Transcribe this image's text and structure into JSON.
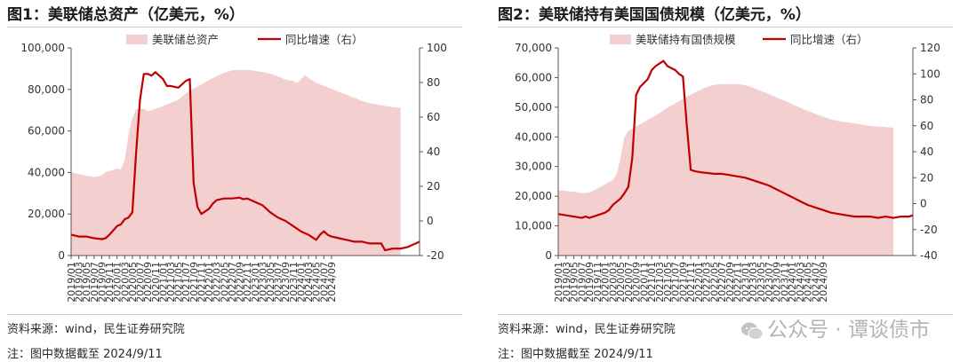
{
  "watermark": "公众号 · 谭谈债市",
  "chart_data": [
    {
      "type": "area",
      "title": "图1：美联储总资产（亿美元，%）",
      "source": "资料来源：wind，民生证券研究院",
      "note": "注：图中数据截至 2024/9/11",
      "area_color": "#f3cfcf",
      "line_color": "#c00000",
      "series": [
        {
          "name": "美联储总资产",
          "axis": "left",
          "kind": "area"
        },
        {
          "name": "同比增速（右）",
          "axis": "right",
          "kind": "line"
        }
      ],
      "y_left": {
        "min": 0,
        "max": 100000,
        "ticks": [
          "0",
          "20,000",
          "40,000",
          "60,000",
          "80,000",
          "100,000"
        ]
      },
      "y_right": {
        "min": -20,
        "max": 100,
        "ticks": [
          "-20",
          "0",
          "20",
          "40",
          "60",
          "80",
          "100"
        ]
      },
      "x_ticks": [
        "2019/01",
        "2019/03",
        "2019/05",
        "2019/07",
        "2019/09",
        "2019/11",
        "2020/01",
        "2020/03",
        "2020/05",
        "2020/07",
        "2020/09",
        "2020/11",
        "2021/01",
        "2021/03",
        "2021/05",
        "2021/07",
        "2021/09",
        "2021/11",
        "2022/01",
        "2022/03",
        "2022/05",
        "2022/07",
        "2022/09",
        "2022/11",
        "2023/01",
        "2023/03",
        "2023/05",
        "2023/07",
        "2023/09",
        "2023/11",
        "2024/01",
        "2024/03",
        "2024/05",
        "2024/07",
        "2024/09"
      ],
      "area_points": [
        [
          0,
          40000
        ],
        [
          3,
          38800
        ],
        [
          6,
          37800
        ],
        [
          8,
          38600
        ],
        [
          9,
          40200
        ],
        [
          12,
          41800
        ],
        [
          13,
          41600
        ],
        [
          14,
          46000
        ],
        [
          15,
          58000
        ],
        [
          16,
          66000
        ],
        [
          17,
          70500
        ],
        [
          18,
          70800
        ],
        [
          19,
          70600
        ],
        [
          20,
          69500
        ],
        [
          22,
          70600
        ],
        [
          24,
          72000
        ],
        [
          26,
          73500
        ],
        [
          28,
          75000
        ],
        [
          30,
          78200
        ],
        [
          32,
          80500
        ],
        [
          34,
          82300
        ],
        [
          36,
          84500
        ],
        [
          38,
          86400
        ],
        [
          40,
          88000
        ],
        [
          42,
          89200
        ],
        [
          44,
          89500
        ],
        [
          46,
          89400
        ],
        [
          48,
          89000
        ],
        [
          50,
          88300
        ],
        [
          52,
          87600
        ],
        [
          54,
          86300
        ],
        [
          56,
          84800
        ],
        [
          58,
          84000
        ],
        [
          59,
          83100
        ],
        [
          60,
          85000
        ],
        [
          61,
          87000
        ],
        [
          62,
          85500
        ],
        [
          64,
          83200
        ],
        [
          66,
          81800
        ],
        [
          68,
          80300
        ],
        [
          70,
          78800
        ],
        [
          72,
          77300
        ],
        [
          74,
          75900
        ],
        [
          76,
          74400
        ],
        [
          78,
          73300
        ],
        [
          80,
          72800
        ],
        [
          82,
          72000
        ],
        [
          84,
          71500
        ],
        [
          86,
          71200
        ]
      ],
      "line_points": [
        [
          0,
          -8
        ],
        [
          2,
          -9
        ],
        [
          4,
          -9
        ],
        [
          6,
          -10
        ],
        [
          8,
          -10.5
        ],
        [
          9,
          -10
        ],
        [
          10,
          -8
        ],
        [
          12,
          -3
        ],
        [
          13,
          -2
        ],
        [
          14,
          1
        ],
        [
          15,
          2
        ],
        [
          16,
          5
        ],
        [
          17,
          40
        ],
        [
          18,
          70
        ],
        [
          19,
          85
        ],
        [
          20,
          85
        ],
        [
          21,
          84
        ],
        [
          22,
          86
        ],
        [
          24,
          82
        ],
        [
          25,
          78
        ],
        [
          26,
          78
        ],
        [
          28,
          77
        ],
        [
          29,
          79
        ],
        [
          30,
          81
        ],
        [
          31,
          82
        ],
        [
          32,
          22
        ],
        [
          33,
          8
        ],
        [
          34,
          4
        ],
        [
          36,
          7
        ],
        [
          37,
          10
        ],
        [
          38,
          12
        ],
        [
          40,
          13
        ],
        [
          42,
          13
        ],
        [
          44,
          13.5
        ],
        [
          45,
          12.5
        ],
        [
          46,
          13
        ],
        [
          47,
          12
        ],
        [
          48,
          11
        ],
        [
          50,
          9
        ],
        [
          52,
          5
        ],
        [
          54,
          2
        ],
        [
          56,
          0
        ],
        [
          58,
          -3
        ],
        [
          60,
          -6
        ],
        [
          62,
          -8
        ],
        [
          64,
          -11
        ],
        [
          65,
          -8
        ],
        [
          66,
          -6
        ],
        [
          67,
          -8
        ],
        [
          68,
          -9
        ],
        [
          70,
          -10
        ],
        [
          72,
          -11
        ],
        [
          74,
          -12
        ],
        [
          76,
          -12
        ],
        [
          78,
          -13
        ],
        [
          80,
          -13
        ],
        [
          81,
          -13
        ],
        [
          82,
          -17
        ],
        [
          84,
          -16
        ],
        [
          86,
          -16
        ],
        [
          88,
          -15
        ],
        [
          89,
          -14
        ],
        [
          90,
          -13
        ],
        [
          91,
          -12
        ]
      ],
      "x_count": 92
    },
    {
      "type": "area",
      "title": "图2：美联储持有美国国债规模（亿美元，%）",
      "source": "资料来源：wind，民生证券研究院",
      "note": "注：图中数据截至 2024/9/11",
      "area_color": "#f3cfcf",
      "line_color": "#c00000",
      "series": [
        {
          "name": "美联储持有国债规模",
          "axis": "left",
          "kind": "area"
        },
        {
          "name": "同比增速（右）",
          "axis": "right",
          "kind": "line"
        }
      ],
      "y_left": {
        "min": 0,
        "max": 70000,
        "ticks": [
          "0",
          "10,000",
          "20,000",
          "30,000",
          "40,000",
          "50,000",
          "60,000",
          "70,000"
        ]
      },
      "y_right": {
        "min": -40,
        "max": 120,
        "ticks": [
          "-40",
          "-20",
          "0",
          "20",
          "40",
          "60",
          "80",
          "100",
          "120"
        ]
      },
      "x_ticks": [
        "2019/01",
        "2019/03",
        "2019/05",
        "2019/07",
        "2019/09",
        "2019/11",
        "2020/01",
        "2020/03",
        "2020/05",
        "2020/07",
        "2020/09",
        "2020/11",
        "2021/01",
        "2021/03",
        "2021/05",
        "2021/07",
        "2021/09",
        "2021/11",
        "2022/01",
        "2022/03",
        "2022/05",
        "2022/07",
        "2022/09",
        "2022/11",
        "2023/01",
        "2023/03",
        "2023/05",
        "2023/07",
        "2023/09",
        "2023/11",
        "2024/01",
        "2024/03",
        "2024/05",
        "2024/07",
        "2024/09"
      ],
      "area_points": [
        [
          0,
          22000
        ],
        [
          4,
          21500
        ],
        [
          6,
          21000
        ],
        [
          8,
          21200
        ],
        [
          10,
          22500
        ],
        [
          12,
          24000
        ],
        [
          14,
          25500
        ],
        [
          15,
          27500
        ],
        [
          16,
          33000
        ],
        [
          17,
          40000
        ],
        [
          18,
          42000
        ],
        [
          20,
          43500
        ],
        [
          22,
          45000
        ],
        [
          24,
          46500
        ],
        [
          26,
          48000
        ],
        [
          28,
          49800
        ],
        [
          30,
          51300
        ],
        [
          32,
          52800
        ],
        [
          34,
          54300
        ],
        [
          36,
          55600
        ],
        [
          38,
          56800
        ],
        [
          40,
          57500
        ],
        [
          42,
          57800
        ],
        [
          46,
          57800
        ],
        [
          48,
          57400
        ],
        [
          50,
          56600
        ],
        [
          52,
          55500
        ],
        [
          54,
          54500
        ],
        [
          56,
          53300
        ],
        [
          58,
          52200
        ],
        [
          60,
          51100
        ],
        [
          62,
          49900
        ],
        [
          64,
          48800
        ],
        [
          66,
          47800
        ],
        [
          68,
          46800
        ],
        [
          70,
          45900
        ],
        [
          72,
          45300
        ],
        [
          74,
          44900
        ],
        [
          76,
          44600
        ],
        [
          78,
          44100
        ],
        [
          80,
          43700
        ],
        [
          82,
          43500
        ],
        [
          84,
          43300
        ],
        [
          86,
          43100
        ]
      ],
      "line_points": [
        [
          0,
          -8
        ],
        [
          2,
          -9
        ],
        [
          4,
          -10
        ],
        [
          6,
          -11
        ],
        [
          7,
          -10
        ],
        [
          8,
          -11
        ],
        [
          10,
          -9
        ],
        [
          12,
          -7
        ],
        [
          13,
          -5
        ],
        [
          14,
          -1
        ],
        [
          16,
          4
        ],
        [
          17,
          8
        ],
        [
          18,
          13
        ],
        [
          19,
          35
        ],
        [
          20,
          84
        ],
        [
          21,
          90
        ],
        [
          22,
          93
        ],
        [
          23,
          96
        ],
        [
          24,
          103
        ],
        [
          25,
          106
        ],
        [
          26,
          108
        ],
        [
          27,
          110
        ],
        [
          28,
          106
        ],
        [
          30,
          103
        ],
        [
          31,
          100
        ],
        [
          32,
          98
        ],
        [
          33,
          60
        ],
        [
          34,
          26
        ],
        [
          35,
          25
        ],
        [
          37,
          24
        ],
        [
          40,
          23
        ],
        [
          42,
          23
        ],
        [
          44,
          22
        ],
        [
          46,
          21
        ],
        [
          48,
          20
        ],
        [
          50,
          18
        ],
        [
          52,
          16
        ],
        [
          54,
          14
        ],
        [
          56,
          11
        ],
        [
          58,
          8
        ],
        [
          60,
          5
        ],
        [
          62,
          2
        ],
        [
          64,
          -1
        ],
        [
          66,
          -3
        ],
        [
          68,
          -5
        ],
        [
          70,
          -7
        ],
        [
          72,
          -8
        ],
        [
          74,
          -9
        ],
        [
          76,
          -10
        ],
        [
          78,
          -10
        ],
        [
          80,
          -10
        ],
        [
          82,
          -11
        ],
        [
          84,
          -10
        ],
        [
          86,
          -11
        ],
        [
          88,
          -10
        ],
        [
          90,
          -10
        ],
        [
          91,
          -9
        ]
      ],
      "x_count": 92
    }
  ]
}
